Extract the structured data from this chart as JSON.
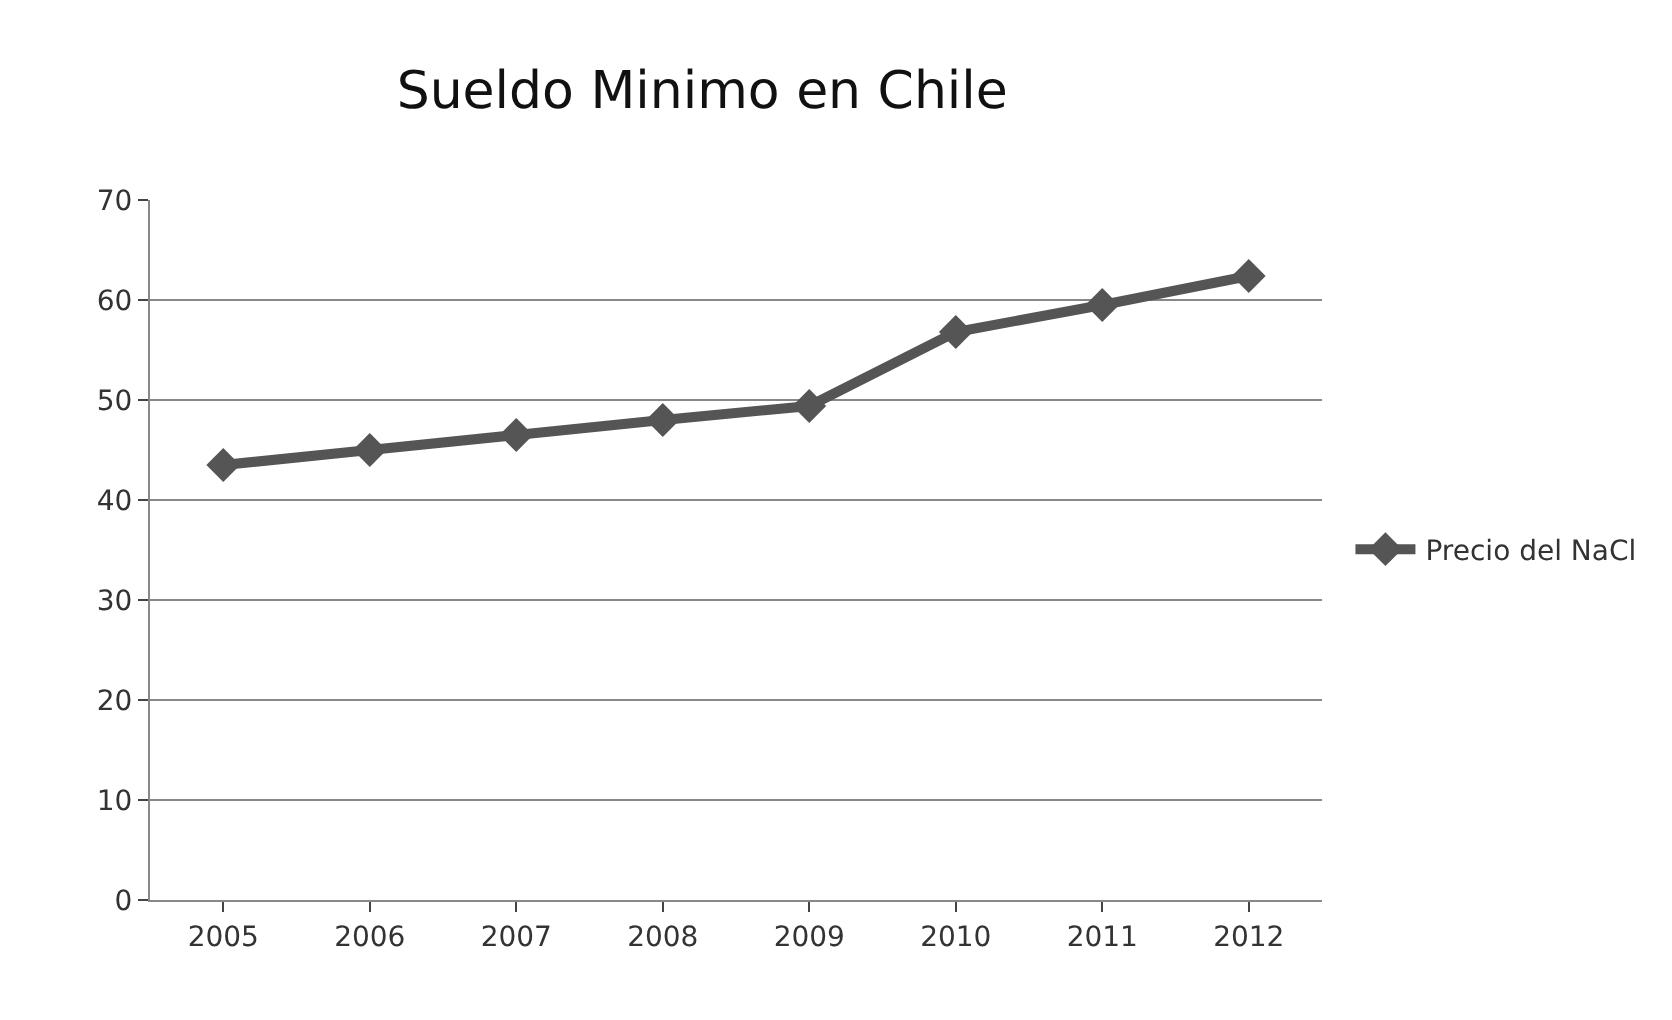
{
  "chart_data": {
    "type": "line",
    "title": "Sueldo Minimo en Chile",
    "categories": [
      "2005",
      "2006",
      "2007",
      "2008",
      "2009",
      "2010",
      "2011",
      "2012"
    ],
    "series": [
      {
        "name": "Precio del NaCl",
        "color": "#555555",
        "values": [
          43.5,
          45.0,
          46.5,
          48.0,
          49.4,
          56.8,
          59.5,
          62.4
        ]
      }
    ],
    "ylim": [
      0,
      70
    ],
    "yticks": [
      0,
      10,
      20,
      30,
      40,
      50,
      60,
      70
    ],
    "grid": "y",
    "legend": "right",
    "marker": "diamond",
    "line_style": "solid"
  }
}
